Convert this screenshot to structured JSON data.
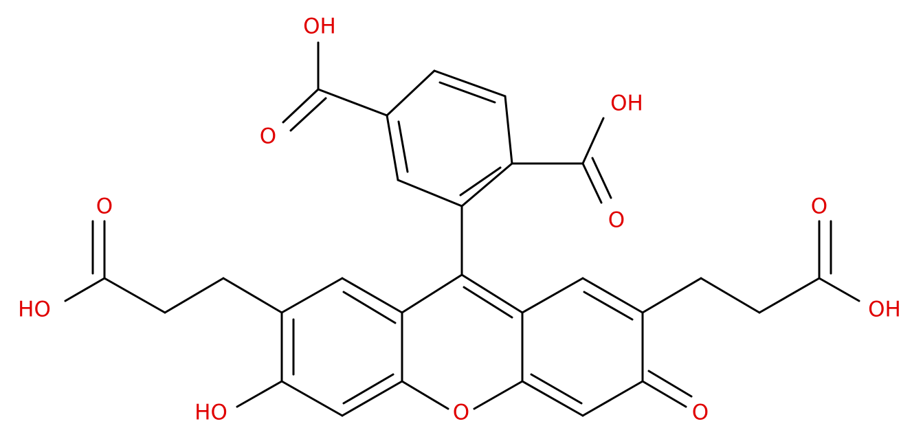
{
  "atoms": [
    {
      "label": "OH"
    },
    {
      "label": "O"
    },
    {
      "label": "OH"
    },
    {
      "label": "O"
    },
    {
      "label": "O"
    },
    {
      "label": "HO"
    },
    {
      "label": "O"
    },
    {
      "label": "OH"
    },
    {
      "label": "HO"
    },
    {
      "label": "O"
    },
    {
      "label": "O"
    }
  ]
}
